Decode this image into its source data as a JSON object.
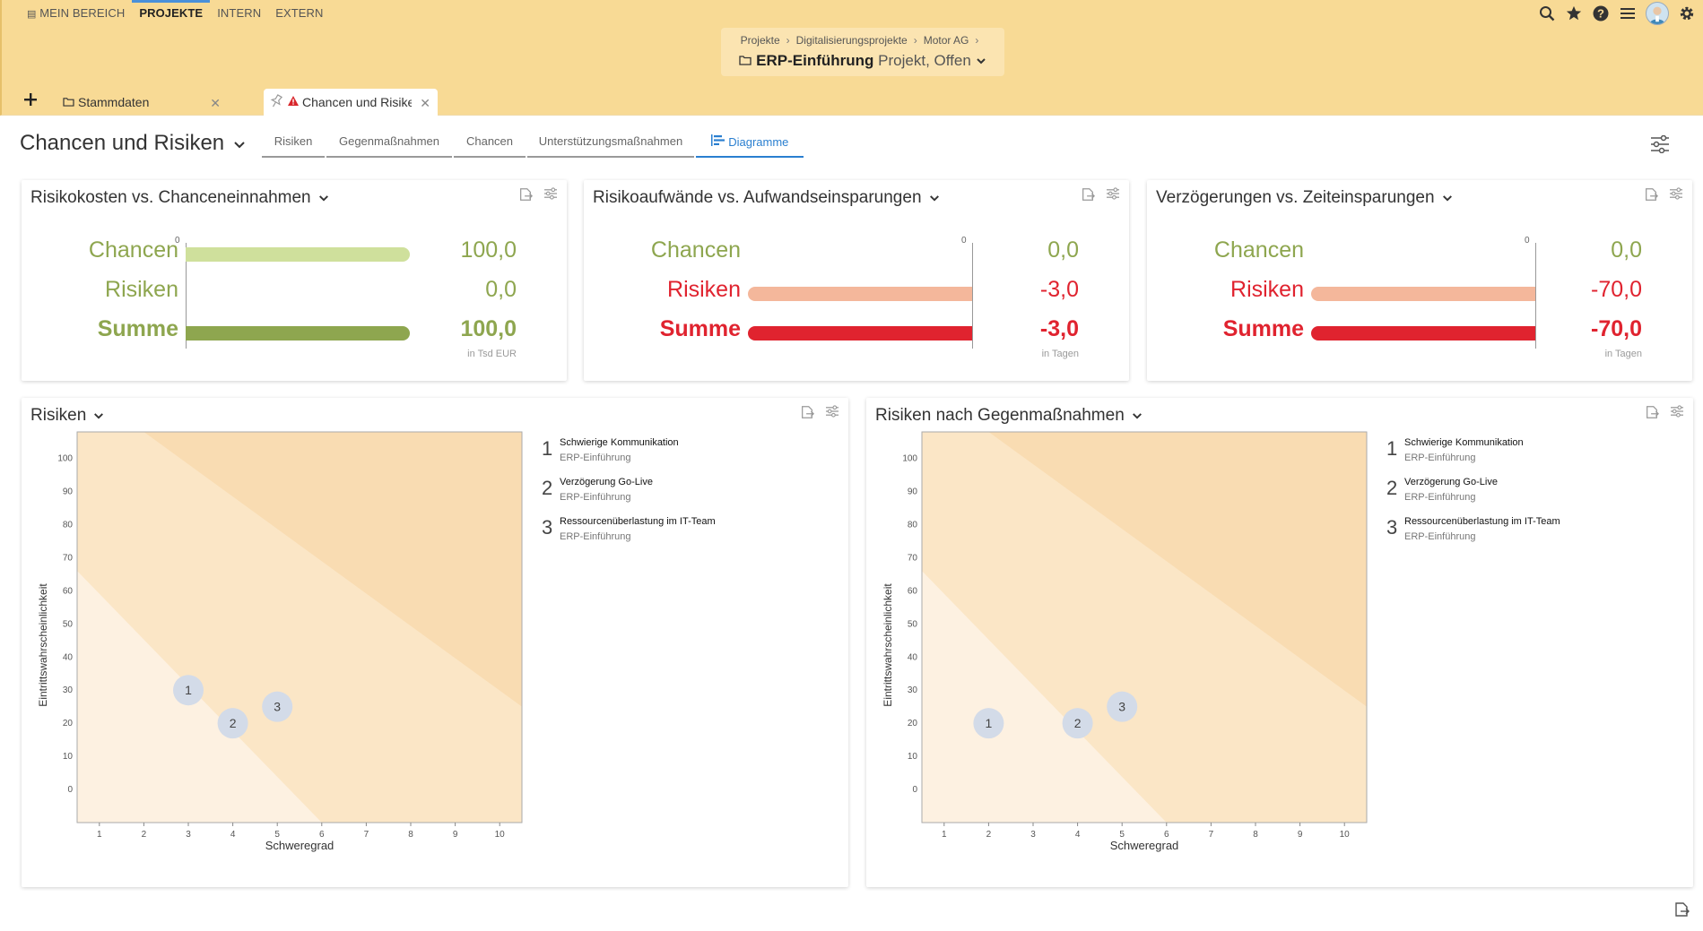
{
  "nav": {
    "items": [
      {
        "label": "MEIN BEREICH",
        "active": false
      },
      {
        "label": "PROJEKTE",
        "active": true
      },
      {
        "label": "INTERN",
        "active": false
      },
      {
        "label": "EXTERN",
        "active": false
      }
    ],
    "icons": [
      "search-icon",
      "star-icon",
      "help-icon",
      "menu-icon",
      "avatar",
      "gear-icon"
    ]
  },
  "breadcrumb": {
    "items": [
      "Projekte",
      "Digitalisierungsprojekte",
      "Motor AG"
    ],
    "project_name": "ERP-Einführung",
    "project_status": "Projekt, Offen"
  },
  "tabs": [
    {
      "label": "Stammdaten"
    },
    {
      "label": "Chancen und Risike"
    }
  ],
  "page": {
    "title": "Chancen und Risiken",
    "subtabs": [
      {
        "label": "Risiken",
        "active": false
      },
      {
        "label": "Gegenmaßnahmen",
        "active": false
      },
      {
        "label": "Chancen",
        "active": false
      },
      {
        "label": "Unterstützungsmaßnahmen",
        "active": false
      },
      {
        "label": "Diagramme",
        "active": true
      }
    ]
  },
  "colors": {
    "topbar": "#f8da95",
    "accent": "#2a7fd0",
    "chance_light": "#cfe09c",
    "chance_dark": "#8ea64f",
    "risk_light": "#f4b79b",
    "risk_dark": "#e0232f",
    "zone_low": "#fdf1e1",
    "zone_mid": "#fbe6c6",
    "zone_high": "#f9dcb2",
    "bubble": "#d3dbe8"
  },
  "summary_cards": [
    {
      "title": "Risikokosten vs. Chanceneinnahmen",
      "unit": "in Tsd EUR",
      "zero_label": "0",
      "rows": [
        {
          "label": "Chancen",
          "display": "100,0",
          "value": 100,
          "style": "chance"
        },
        {
          "label": "Risiken",
          "display": "0,0",
          "value": 0,
          "style": "chance"
        },
        {
          "label": "Summe",
          "display": "100,0",
          "value": 100,
          "style": "chance-sum"
        }
      ]
    },
    {
      "title": "Risikoaufwände vs. Aufwandseinsparungen",
      "unit": "in Tagen",
      "zero_label": "0",
      "rows": [
        {
          "label": "Chancen",
          "display": "0,0",
          "value": 0,
          "style": "chance"
        },
        {
          "label": "Risiken",
          "display": "-3,0",
          "value": -3,
          "style": "risk"
        },
        {
          "label": "Summe",
          "display": "-3,0",
          "value": -3,
          "style": "risk-sum"
        }
      ]
    },
    {
      "title": "Verzögerungen vs. Zeiteinsparungen",
      "unit": "in Tagen",
      "zero_label": "0",
      "rows": [
        {
          "label": "Chancen",
          "display": "0,0",
          "value": 0,
          "style": "chance"
        },
        {
          "label": "Risiken",
          "display": "-70,0",
          "value": -70,
          "style": "risk"
        },
        {
          "label": "Summe",
          "display": "-70,0",
          "value": -70,
          "style": "risk-sum"
        }
      ]
    }
  ],
  "chart_data": [
    {
      "type": "scatter",
      "title": "Risiken",
      "xlabel": "Schweregrad",
      "ylabel": "Eintrittswahrscheinlichkeit",
      "xlim": [
        0.5,
        10.5
      ],
      "ylim": [
        -10,
        108
      ],
      "xticks": [
        1,
        2,
        3,
        4,
        5,
        6,
        7,
        8,
        9,
        10
      ],
      "yticks": [
        0,
        10,
        20,
        30,
        40,
        50,
        60,
        70,
        80,
        90,
        100
      ],
      "grid": false,
      "points": [
        {
          "label": "1",
          "x": 3,
          "y": 30
        },
        {
          "label": "2",
          "x": 4,
          "y": 20
        },
        {
          "label": "3",
          "x": 5,
          "y": 25
        }
      ],
      "legend": [
        {
          "num": "1",
          "title": "Schwierige Kommunikation",
          "sub": "ERP-Einführung"
        },
        {
          "num": "2",
          "title": "Verzögerung Go-Live",
          "sub": "ERP-Einführung"
        },
        {
          "num": "3",
          "title": "Ressourcenüberlastung im IT-Team",
          "sub": "ERP-Einführung"
        }
      ]
    },
    {
      "type": "scatter",
      "title": "Risiken nach Gegenmaßnahmen",
      "xlabel": "Schweregrad",
      "ylabel": "Eintrittswahrscheinlichkeit",
      "xlim": [
        0.5,
        10.5
      ],
      "ylim": [
        -10,
        108
      ],
      "xticks": [
        1,
        2,
        3,
        4,
        5,
        6,
        7,
        8,
        9,
        10
      ],
      "yticks": [
        0,
        10,
        20,
        30,
        40,
        50,
        60,
        70,
        80,
        90,
        100
      ],
      "grid": false,
      "points": [
        {
          "label": "1",
          "x": 2,
          "y": 20
        },
        {
          "label": "2",
          "x": 4,
          "y": 20
        },
        {
          "label": "3",
          "x": 5,
          "y": 25
        }
      ],
      "legend": [
        {
          "num": "1",
          "title": "Schwierige Kommunikation",
          "sub": "ERP-Einführung"
        },
        {
          "num": "2",
          "title": "Verzögerung Go-Live",
          "sub": "ERP-Einführung"
        },
        {
          "num": "3",
          "title": "Ressourcenüberlastung im IT-Team",
          "sub": "ERP-Einführung"
        }
      ]
    }
  ]
}
